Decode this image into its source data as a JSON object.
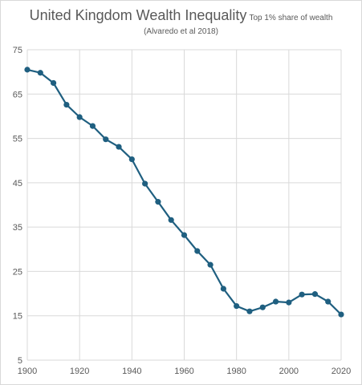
{
  "chart_data": {
    "type": "line",
    "title": "United Kingdom Wealth Inequality",
    "title_suffix": "Top 1% share of wealth",
    "subtitle": "(Alvaredo et al 2018)",
    "xlabel": "",
    "ylabel": "",
    "xlim": [
      1900,
      2020
    ],
    "ylim": [
      5,
      75
    ],
    "x_ticks": [
      1900,
      1920,
      1940,
      1960,
      1980,
      2000,
      2020
    ],
    "y_ticks": [
      5,
      15,
      25,
      35,
      45,
      55,
      65,
      75
    ],
    "grid": true,
    "color": "#1f5f80",
    "series": [
      {
        "x": [
          1900,
          1905,
          1910,
          1915,
          1920,
          1925,
          1930,
          1935,
          1940,
          1945,
          1950,
          1955,
          1960,
          1965,
          1970,
          1975,
          1980,
          1985,
          1990,
          1995,
          2000,
          2005,
          2010,
          2015,
          2020
        ],
        "values": [
          70.5,
          69.8,
          67.5,
          62.6,
          59.8,
          57.8,
          54.8,
          53.1,
          50.3,
          44.8,
          40.7,
          36.6,
          33.2,
          29.6,
          26.5,
          21.1,
          17.2,
          16.0,
          16.9,
          18.2,
          18.0,
          19.8,
          19.9,
          18.2,
          15.3
        ]
      }
    ]
  }
}
